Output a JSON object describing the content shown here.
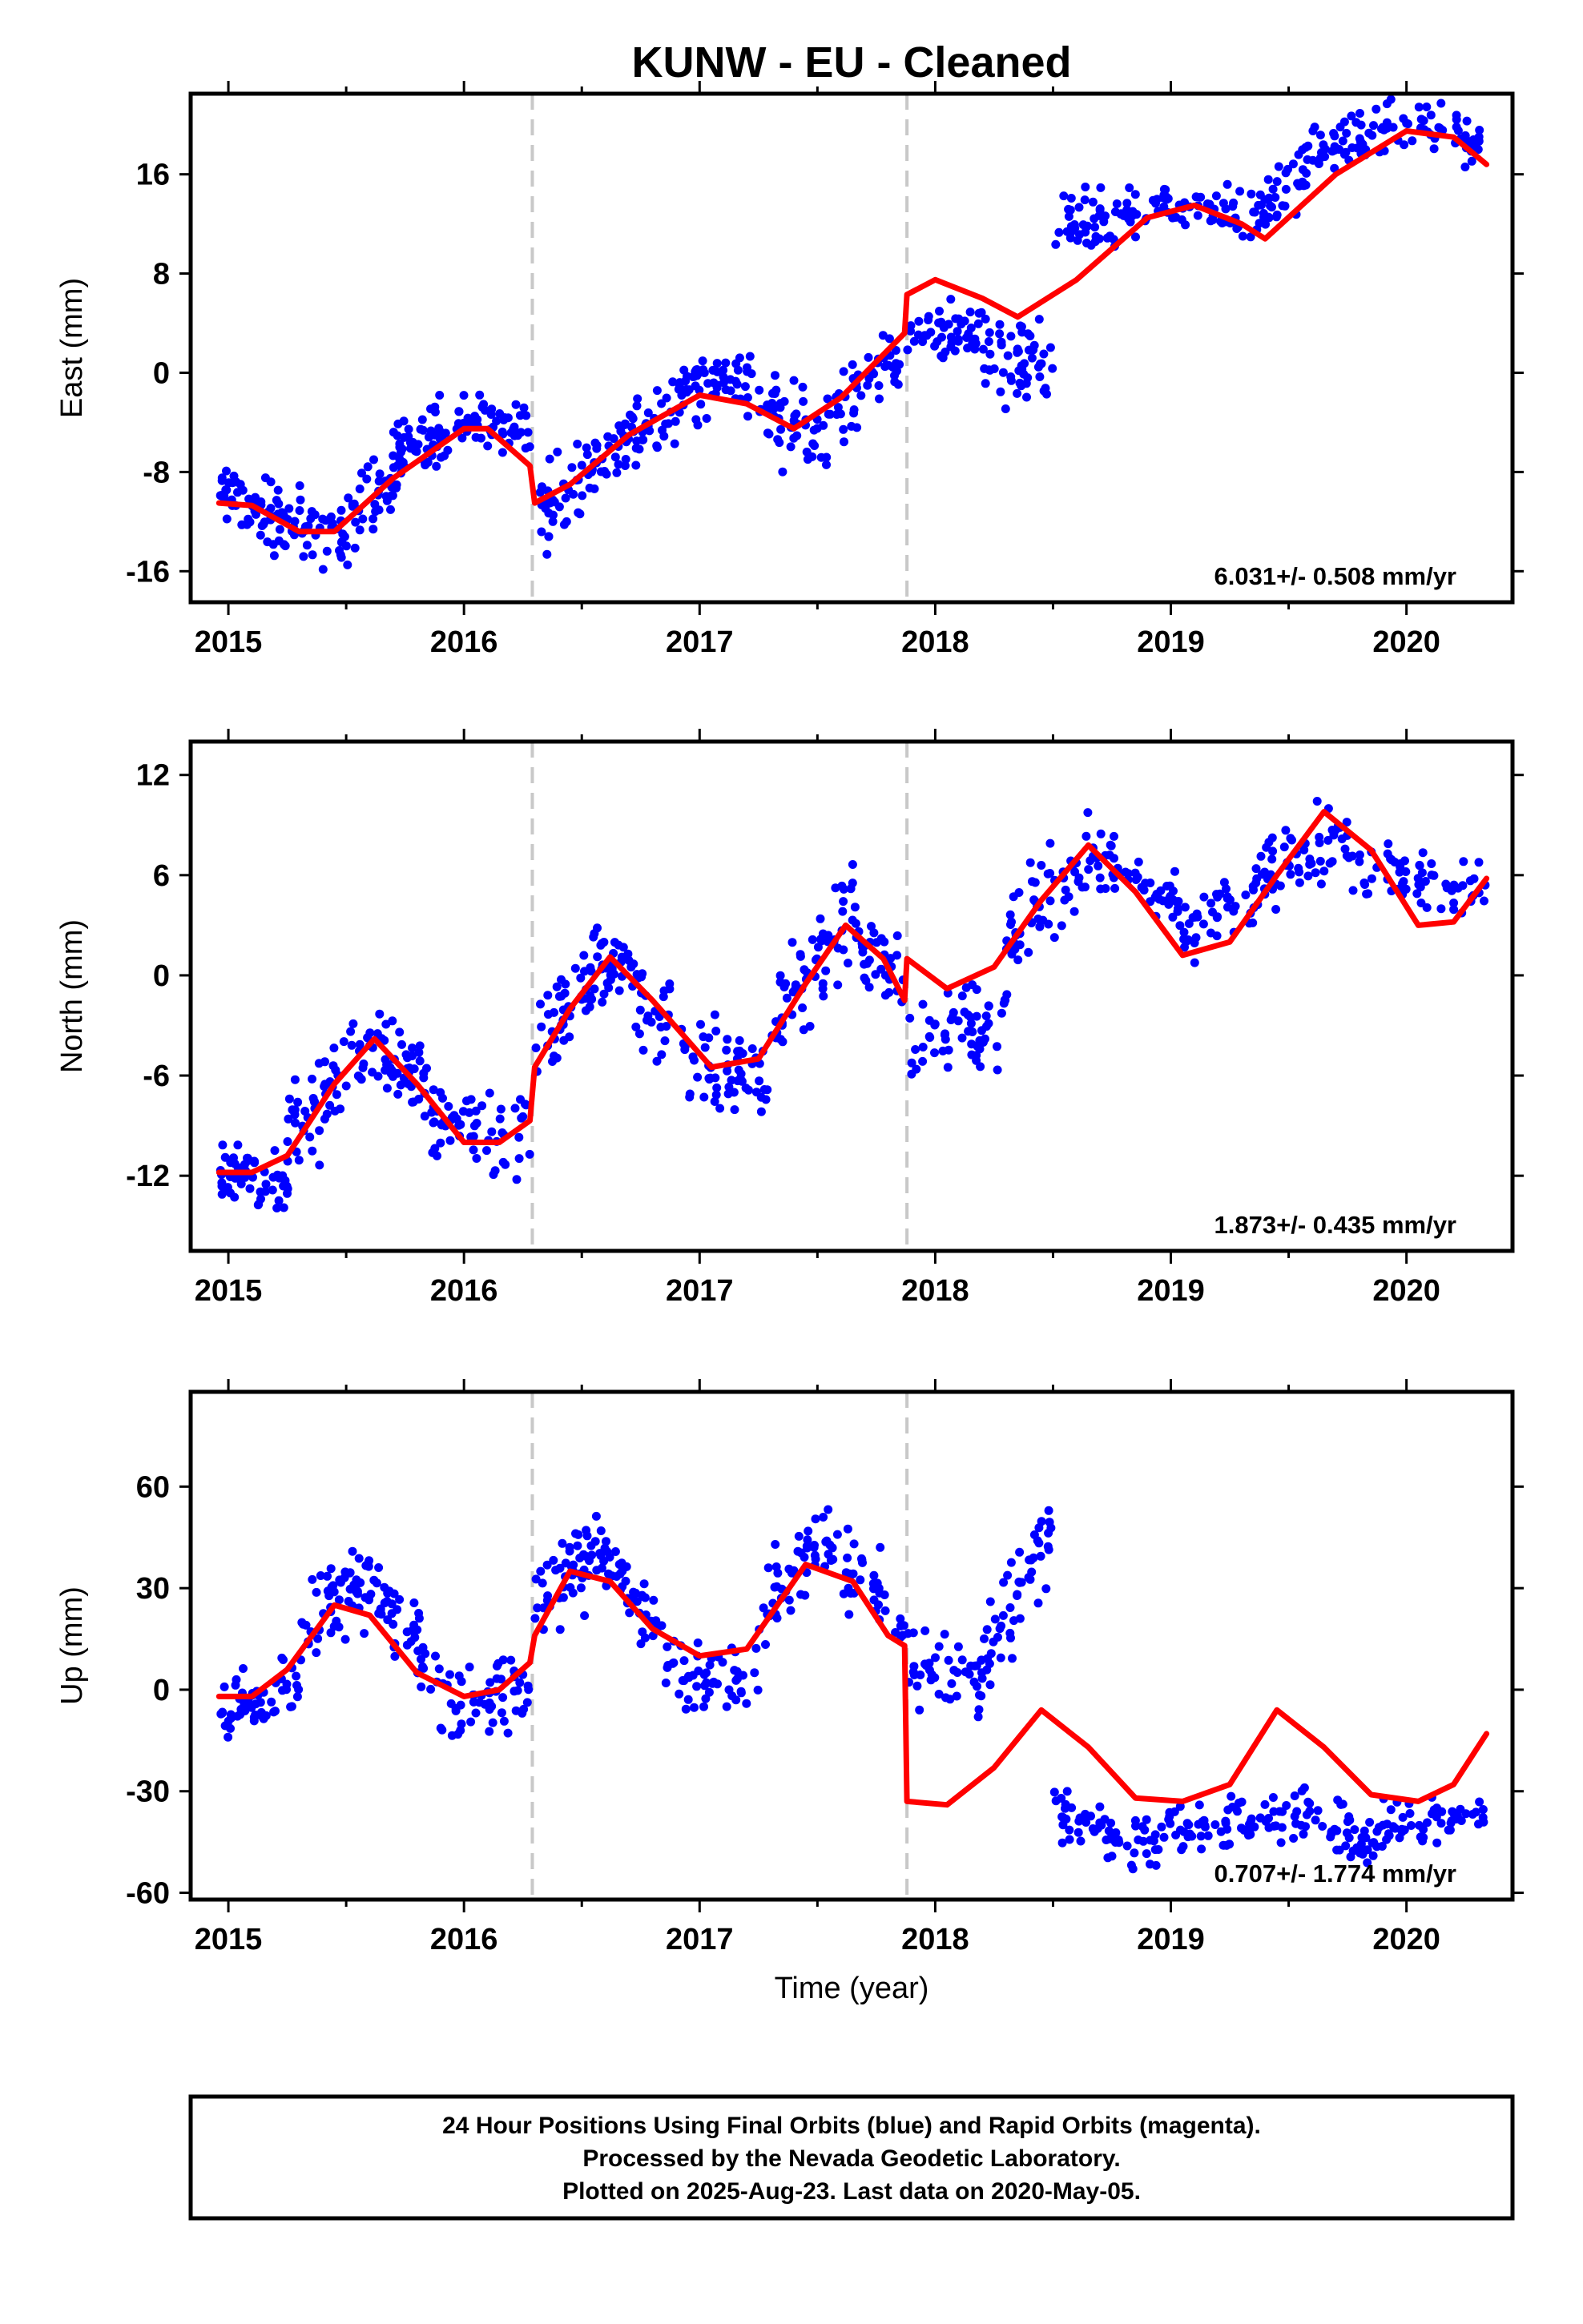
{
  "title": "KUNW  - EU - Cleaned",
  "footer_lines": [
    "24 Hour Positions Using Final Orbits (blue) and Rapid Orbits (magenta).",
    "Processed by the Nevada Geodetic Laboratory.",
    "Plotted on 2025-Aug-23. Last data on 2020-May-05."
  ],
  "colors": {
    "points": "#0000ff",
    "fit": "#ff0000",
    "steps": "#c8c8c8",
    "frame": "#000000"
  },
  "chart_data": [
    {
      "type": "scatter",
      "component": "East",
      "ylabel": "East (mm)",
      "xlabel": "",
      "xlim": [
        2014.84,
        2020.45
      ],
      "ylim": [
        -18.5,
        22.5
      ],
      "xticks": [
        2015,
        2016,
        2017,
        2018,
        2019,
        2020
      ],
      "yticks": [
        -16,
        -8,
        0,
        8,
        16
      ],
      "rate_text": "6.031+/- 0.508 mm/yr",
      "offset_epochs": [
        2016.29,
        2017.88
      ],
      "data_range": [
        2014.96,
        2020.34
      ],
      "fit": {
        "x": [
          2014.96,
          2015.1,
          2015.3,
          2015.45,
          2015.7,
          2016.0,
          2016.1,
          2016.28,
          2016.3,
          2016.45,
          2016.7,
          2017.0,
          2017.2,
          2017.4,
          2017.6,
          2017.87,
          2017.88,
          2018.0,
          2018.2,
          2018.35,
          2018.6,
          2018.9,
          2019.1,
          2019.3,
          2019.4,
          2019.7,
          2020.0,
          2020.2,
          2020.34
        ],
        "y": [
          -10.5,
          -10.7,
          -12.8,
          -12.8,
          -8.5,
          -4.5,
          -4.5,
          -7.5,
          -10.5,
          -9.0,
          -5.0,
          -1.8,
          -2.5,
          -4.5,
          -2.0,
          3.2,
          6.3,
          7.5,
          6.0,
          4.5,
          7.5,
          12.5,
          13.5,
          12.0,
          10.8,
          16.0,
          19.5,
          19.0,
          16.8
        ]
      },
      "clusters": [
        {
          "x": [
            2014.96,
            2015.18
          ],
          "y": [
            -9.5,
            -11.5
          ],
          "spread": 1.8,
          "n": 45
        },
        {
          "x": [
            2015.18,
            2015.5
          ],
          "y": [
            -11.5,
            -13.5
          ],
          "spread": 2.2,
          "n": 55
        },
        {
          "x": [
            2015.5,
            2015.75
          ],
          "y": [
            -12.5,
            -7.5
          ],
          "spread": 2.2,
          "n": 45
        },
        {
          "x": [
            2015.7,
            2016.0
          ],
          "y": [
            -6.5,
            -4.0
          ],
          "spread": 1.8,
          "n": 55
        },
        {
          "x": [
            2016.0,
            2016.28
          ],
          "y": [
            -3.5,
            -4.5
          ],
          "spread": 1.5,
          "n": 45
        },
        {
          "x": [
            2016.3,
            2016.55
          ],
          "y": [
            -10.5,
            -8.0
          ],
          "spread": 2.5,
          "n": 40
        },
        {
          "x": [
            2016.55,
            2016.9
          ],
          "y": [
            -7.0,
            -2.5
          ],
          "spread": 2.2,
          "n": 60
        },
        {
          "x": [
            2016.9,
            2017.25
          ],
          "y": [
            -1.5,
            -0.5
          ],
          "spread": 1.8,
          "n": 60
        },
        {
          "x": [
            2017.25,
            2017.55
          ],
          "y": [
            -3.0,
            -5.0
          ],
          "spread": 2.5,
          "n": 50
        },
        {
          "x": [
            2017.55,
            2017.87
          ],
          "y": [
            -3.0,
            1.5
          ],
          "spread": 2.2,
          "n": 45
        },
        {
          "x": [
            2017.88,
            2018.2
          ],
          "y": [
            4.0,
            3.0
          ],
          "spread": 1.8,
          "n": 50
        },
        {
          "x": [
            2018.2,
            2018.5
          ],
          "y": [
            1.5,
            0.5
          ],
          "spread": 2.5,
          "n": 55
        },
        {
          "x": [
            2018.5,
            2018.9
          ],
          "y": [
            12.0,
            13.0
          ],
          "spread": 1.5,
          "n": 60
        },
        {
          "x": [
            2018.9,
            2019.3
          ],
          "y": [
            13.5,
            13.0
          ],
          "spread": 1.2,
          "n": 55
        },
        {
          "x": [
            2019.3,
            2019.6
          ],
          "y": [
            12.0,
            17.0
          ],
          "spread": 1.8,
          "n": 45
        },
        {
          "x": [
            2019.6,
            2020.0
          ],
          "y": [
            17.5,
            20.0
          ],
          "spread": 1.5,
          "n": 55
        },
        {
          "x": [
            2020.0,
            2020.34
          ],
          "y": [
            20.0,
            18.5
          ],
          "spread": 1.3,
          "n": 40
        }
      ]
    },
    {
      "type": "scatter",
      "component": "North",
      "ylabel": "North (mm)",
      "xlabel": "",
      "xlim": [
        2014.84,
        2020.45
      ],
      "ylim": [
        -16.5,
        14.0
      ],
      "xticks": [
        2015,
        2016,
        2017,
        2018,
        2019,
        2020
      ],
      "yticks": [
        -12,
        -6,
        0,
        6,
        12
      ],
      "rate_text": "1.873+/- 0.435 mm/yr",
      "offset_epochs": [
        2016.29,
        2017.88
      ],
      "data_range": [
        2014.96,
        2020.34
      ],
      "fit": {
        "x": [
          2014.96,
          2015.1,
          2015.25,
          2015.45,
          2015.62,
          2015.8,
          2016.0,
          2016.15,
          2016.28,
          2016.3,
          2016.45,
          2016.62,
          2016.8,
          2017.05,
          2017.25,
          2017.45,
          2017.62,
          2017.78,
          2017.87,
          2017.88,
          2018.05,
          2018.25,
          2018.45,
          2018.65,
          2018.85,
          2019.05,
          2019.25,
          2019.45,
          2019.65,
          2019.85,
          2020.05,
          2020.2,
          2020.34
        ],
        "y": [
          -11.8,
          -11.8,
          -10.8,
          -6.5,
          -3.8,
          -6.5,
          -10.0,
          -10.0,
          -8.7,
          -5.5,
          -2.0,
          1.1,
          -1.5,
          -5.5,
          -5.0,
          -0.5,
          3.0,
          1.0,
          -1.5,
          1.0,
          -0.8,
          0.5,
          4.5,
          7.8,
          5.0,
          1.2,
          2.0,
          6.0,
          9.8,
          7.5,
          3.0,
          3.2,
          5.8
        ]
      },
      "clusters": [
        {
          "x": [
            2014.96,
            2015.25
          ],
          "y": [
            -12.0,
            -12.5
          ],
          "spread": 1.5,
          "n": 55
        },
        {
          "x": [
            2015.25,
            2015.62
          ],
          "y": [
            -10.0,
            -4.5
          ],
          "spread": 2.2,
          "n": 60
        },
        {
          "x": [
            2015.62,
            2015.85
          ],
          "y": [
            -4.0,
            -7.0
          ],
          "spread": 1.8,
          "n": 45
        },
        {
          "x": [
            2015.85,
            2016.28
          ],
          "y": [
            -9.0,
            -9.5
          ],
          "spread": 1.8,
          "n": 60
        },
        {
          "x": [
            2016.3,
            2016.62
          ],
          "y": [
            -4.0,
            1.5
          ],
          "spread": 2.2,
          "n": 60
        },
        {
          "x": [
            2016.62,
            2016.9
          ],
          "y": [
            0.5,
            -3.5
          ],
          "spread": 2.0,
          "n": 45
        },
        {
          "x": [
            2016.9,
            2017.3
          ],
          "y": [
            -5.0,
            -6.5
          ],
          "spread": 1.8,
          "n": 60
        },
        {
          "x": [
            2017.3,
            2017.62
          ],
          "y": [
            -3.0,
            3.5
          ],
          "spread": 2.2,
          "n": 55
        },
        {
          "x": [
            2017.62,
            2017.87
          ],
          "y": [
            3.5,
            -1.0
          ],
          "spread": 2.0,
          "n": 40
        },
        {
          "x": [
            2017.88,
            2018.3
          ],
          "y": [
            -3.5,
            -3.0
          ],
          "spread": 1.8,
          "n": 60
        },
        {
          "x": [
            2018.3,
            2018.65
          ],
          "y": [
            2.0,
            7.0
          ],
          "spread": 2.2,
          "n": 55
        },
        {
          "x": [
            2018.65,
            2019.05
          ],
          "y": [
            7.0,
            4.5
          ],
          "spread": 1.2,
          "n": 55
        },
        {
          "x": [
            2019.05,
            2019.4
          ],
          "y": [
            2.5,
            5.0
          ],
          "spread": 1.5,
          "n": 50
        },
        {
          "x": [
            2019.4,
            2019.75
          ],
          "y": [
            6.5,
            8.5
          ],
          "spread": 1.5,
          "n": 50
        },
        {
          "x": [
            2019.75,
            2020.34
          ],
          "y": [
            6.5,
            5.0
          ],
          "spread": 1.2,
          "n": 65
        }
      ]
    },
    {
      "type": "scatter",
      "component": "Up",
      "ylabel": "Up (mm)",
      "xlabel": "Time (year)",
      "xlim": [
        2014.84,
        2020.45
      ],
      "ylim": [
        -62,
        88
      ],
      "xticks": [
        2015,
        2016,
        2017,
        2018,
        2019,
        2020
      ],
      "yticks": [
        -60,
        -30,
        0,
        30,
        60
      ],
      "rate_text": "0.707+/- 1.774 mm/yr",
      "offset_epochs": [
        2016.29,
        2017.88
      ],
      "data_range": [
        2014.96,
        2020.34
      ],
      "fit": {
        "x": [
          2014.96,
          2015.1,
          2015.25,
          2015.45,
          2015.6,
          2015.8,
          2016.0,
          2016.15,
          2016.28,
          2016.3,
          2016.45,
          2016.62,
          2016.8,
          2017.0,
          2017.2,
          2017.45,
          2017.65,
          2017.8,
          2017.87,
          2017.88,
          2018.05,
          2018.25,
          2018.45,
          2018.65,
          2018.85,
          2019.05,
          2019.25,
          2019.45,
          2019.65,
          2019.85,
          2020.05,
          2020.2,
          2020.34
        ],
        "y": [
          -2,
          -2,
          6,
          25,
          22,
          5,
          -2,
          0,
          8,
          16,
          35,
          32,
          18,
          10,
          12,
          37,
          32,
          16,
          13,
          -33,
          -34,
          -23,
          -6,
          -17,
          -32,
          -33,
          -28,
          -6,
          -17,
          -31,
          -33,
          -28,
          -13
        ]
      },
      "clusters": [
        {
          "x": [
            2014.96,
            2015.3
          ],
          "y": [
            -8,
            2
          ],
          "spread": 7,
          "n": 55
        },
        {
          "x": [
            2015.3,
            2015.6
          ],
          "y": [
            15,
            33
          ],
          "spread": 9,
          "n": 55
        },
        {
          "x": [
            2015.6,
            2015.9
          ],
          "y": [
            30,
            5
          ],
          "spread": 8,
          "n": 45
        },
        {
          "x": [
            2015.9,
            2016.28
          ],
          "y": [
            -5,
            0
          ],
          "spread": 7,
          "n": 55
        },
        {
          "x": [
            2016.3,
            2016.6
          ],
          "y": [
            28,
            42
          ],
          "spread": 9,
          "n": 55
        },
        {
          "x": [
            2016.6,
            2016.85
          ],
          "y": [
            40,
            15
          ],
          "spread": 8,
          "n": 40
        },
        {
          "x": [
            2016.85,
            2017.25
          ],
          "y": [
            5,
            3
          ],
          "spread": 7,
          "n": 55
        },
        {
          "x": [
            2017.25,
            2017.6
          ],
          "y": [
            25,
            48
          ],
          "spread": 9,
          "n": 55
        },
        {
          "x": [
            2017.6,
            2017.87
          ],
          "y": [
            40,
            20
          ],
          "spread": 9,
          "n": 35
        },
        {
          "x": [
            2017.88,
            2018.2
          ],
          "y": [
            8,
            2
          ],
          "spread": 7,
          "n": 45
        },
        {
          "x": [
            2018.2,
            2018.5
          ],
          "y": [
            10,
            45
          ],
          "spread": 10,
          "n": 50
        },
        {
          "x": [
            2018.5,
            2018.95
          ],
          "y": [
            -38,
            -46
          ],
          "spread": 6,
          "n": 60
        },
        {
          "x": [
            2018.95,
            2019.55
          ],
          "y": [
            -42,
            -36
          ],
          "spread": 5,
          "n": 70
        },
        {
          "x": [
            2019.55,
            2019.9
          ],
          "y": [
            -36,
            -45
          ],
          "spread": 6,
          "n": 50
        },
        {
          "x": [
            2019.9,
            2020.34
          ],
          "y": [
            -40,
            -38
          ],
          "spread": 5,
          "n": 50
        }
      ]
    }
  ]
}
